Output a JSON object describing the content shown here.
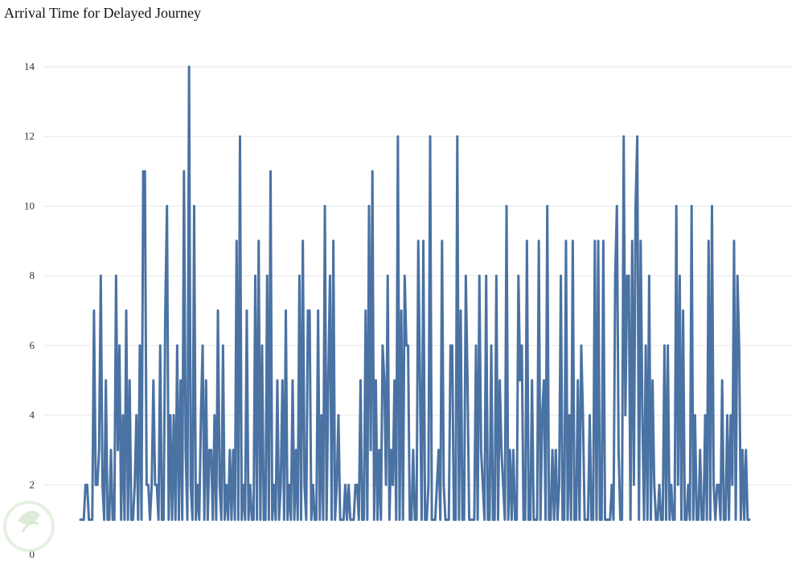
{
  "chart_data": {
    "type": "line",
    "title": "Arrival Time for Delayed Journey",
    "xlabel": "",
    "ylabel": "",
    "ylim": [
      0,
      14
    ],
    "yticks": [
      0,
      2,
      4,
      6,
      8,
      10,
      12,
      14
    ],
    "grid": true,
    "series": [
      {
        "color": "#4a72a3",
        "values": [
          1,
          1,
          1,
          2,
          2,
          1,
          1,
          1,
          7,
          2,
          2,
          3,
          8,
          2,
          1,
          5,
          1,
          1,
          3,
          1,
          1,
          8,
          3,
          6,
          1,
          4,
          1,
          7,
          1,
          5,
          1,
          1,
          2,
          4,
          1,
          6,
          1,
          11,
          11,
          2,
          2,
          1,
          2,
          5,
          2,
          2,
          1,
          6,
          1,
          1,
          7,
          10,
          1,
          4,
          1,
          4,
          1,
          6,
          1,
          5,
          1,
          11,
          3,
          1,
          14,
          2,
          1,
          10,
          1,
          2,
          1,
          4,
          6,
          1,
          5,
          1,
          3,
          3,
          1,
          4,
          1,
          7,
          2,
          1,
          6,
          1,
          2,
          1,
          3,
          1,
          3,
          1,
          9,
          1,
          12,
          1,
          2,
          1,
          7,
          1,
          2,
          1,
          1,
          8,
          1,
          9,
          1,
          6,
          1,
          1,
          8,
          1,
          11,
          1,
          2,
          1,
          5,
          1,
          2,
          5,
          1,
          7,
          1,
          2,
          1,
          5,
          1,
          3,
          1,
          8,
          1,
          9,
          2,
          1,
          7,
          7,
          1,
          2,
          1,
          1,
          7,
          1,
          4,
          1,
          10,
          1,
          5,
          8,
          1,
          9,
          1,
          2,
          4,
          1,
          1,
          1,
          2,
          1,
          2,
          1,
          1,
          1,
          2,
          2,
          1,
          5,
          1,
          1,
          7,
          1,
          10,
          3,
          11,
          1,
          5,
          1,
          3,
          1,
          6,
          5,
          2,
          8,
          1,
          3,
          2,
          5,
          1,
          12,
          1,
          7,
          1,
          8,
          6,
          6,
          1,
          1,
          3,
          1,
          1,
          9,
          5,
          1,
          9,
          1,
          1,
          2,
          12,
          1,
          1,
          1,
          2,
          3,
          1,
          9,
          2,
          1,
          1,
          1,
          6,
          6,
          1,
          1,
          12,
          1,
          7,
          1,
          1,
          8,
          5,
          1,
          1,
          1,
          1,
          6,
          1,
          8,
          3,
          2,
          1,
          8,
          1,
          1,
          6,
          1,
          1,
          8,
          1,
          5,
          3,
          2,
          1,
          10,
          1,
          3,
          1,
          3,
          1,
          1,
          8,
          5,
          6,
          1,
          1,
          9,
          1,
          1,
          5,
          1,
          1,
          1,
          9,
          1,
          4,
          5,
          1,
          10,
          1,
          1,
          3,
          1,
          3,
          1,
          2,
          8,
          1,
          1,
          9,
          1,
          4,
          1,
          9,
          1,
          1,
          5,
          1,
          6,
          4,
          1,
          1,
          1,
          4,
          1,
          1,
          9,
          1,
          9,
          1,
          1,
          9,
          1,
          1,
          1,
          1,
          2,
          1,
          8,
          10,
          3,
          1,
          1,
          12,
          4,
          8,
          8,
          1,
          9,
          2,
          10,
          12,
          1,
          9,
          4,
          1,
          6,
          1,
          8,
          1,
          5,
          2,
          1,
          1,
          2,
          1,
          1,
          6,
          1,
          6,
          1,
          2,
          1,
          1,
          10,
          2,
          8,
          1,
          7,
          1,
          1,
          2,
          1,
          10,
          1,
          4,
          1,
          1,
          3,
          1,
          1,
          4,
          1,
          9,
          1,
          10,
          2,
          1,
          2,
          2,
          1,
          5,
          1,
          1,
          4,
          1,
          4,
          2,
          9,
          1,
          8,
          6,
          1,
          3,
          1,
          3,
          1,
          1
        ]
      }
    ]
  }
}
